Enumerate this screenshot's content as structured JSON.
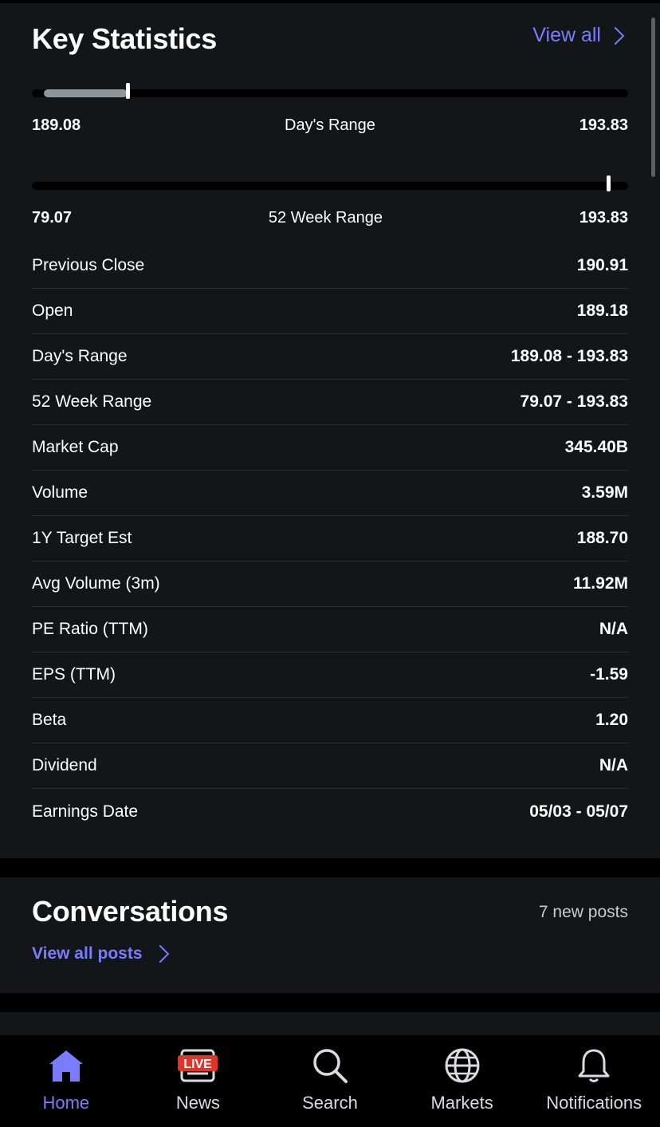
{
  "key_statistics": {
    "title": "Key Statistics",
    "view_all_label": "View all",
    "day_range": {
      "low": "189.08",
      "label": "Day's Range",
      "high": "193.83",
      "fill_fraction": 0.16
    },
    "week_range": {
      "low": "79.07",
      "label": "52 Week Range",
      "high": "193.83",
      "marker_fraction": 0.966
    },
    "rows": [
      {
        "label": "Previous Close",
        "value": "190.91"
      },
      {
        "label": "Open",
        "value": "189.18"
      },
      {
        "label": "Day's Range",
        "value": "189.08 - 193.83"
      },
      {
        "label": "52 Week Range",
        "value": "79.07 - 193.83"
      },
      {
        "label": "Market Cap",
        "value": "345.40B"
      },
      {
        "label": "Volume",
        "value": "3.59M"
      },
      {
        "label": "1Y Target Est",
        "value": "188.70"
      },
      {
        "label": "Avg Volume (3m)",
        "value": "11.92M"
      },
      {
        "label": "PE Ratio (TTM)",
        "value": "N/A"
      },
      {
        "label": "EPS (TTM)",
        "value": "-1.59"
      },
      {
        "label": "Beta",
        "value": "1.20"
      },
      {
        "label": "Dividend",
        "value": "N/A"
      },
      {
        "label": "Earnings Date",
        "value": "05/03 - 05/07"
      }
    ]
  },
  "conversations": {
    "title": "Conversations",
    "new_posts": "7 new posts",
    "view_all_posts_label": "View all posts"
  },
  "tabs": [
    {
      "label": "Home",
      "icon": "home-icon",
      "active": true
    },
    {
      "label": "News",
      "icon": "live-news-icon",
      "badge": "LIVE",
      "active": false
    },
    {
      "label": "Search",
      "icon": "search-icon",
      "active": false
    },
    {
      "label": "Markets",
      "icon": "globe-icon",
      "active": false
    },
    {
      "label": "Notifications",
      "icon": "bell-icon",
      "active": false
    }
  ],
  "colors": {
    "accent": "#7b7bff",
    "card": "#121619",
    "background": "#000000",
    "live_badge": "#e0352b"
  }
}
